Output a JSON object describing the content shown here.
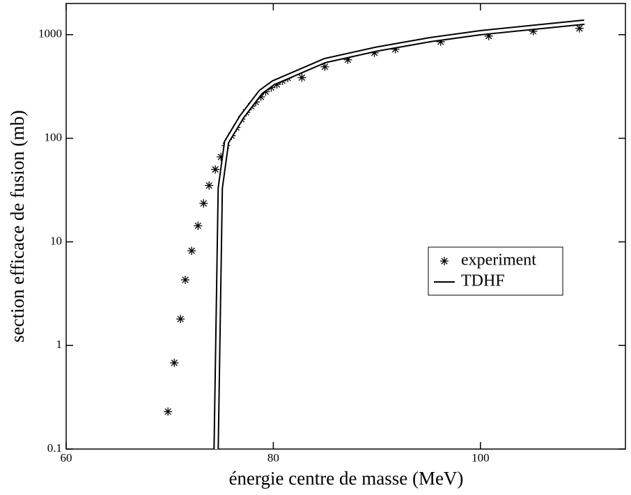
{
  "chart_data": {
    "type": "scatter",
    "xlabel": "énergie centre de masse (MeV)",
    "ylabel": "section efficace de fusion (mb)",
    "xlim": [
      60,
      114
    ],
    "xticks": [
      60,
      80,
      100
    ],
    "ylim": [
      0.1,
      2000
    ],
    "yticks": [
      0.1,
      1,
      10,
      100,
      1000
    ],
    "ylog": true,
    "legend": "right",
    "series": [
      {
        "name": "experiment",
        "style": "markers",
        "color": "#000000",
        "x": [
          69.83,
          70.44,
          71.04,
          71.5,
          72.12,
          72.73,
          73.27,
          73.8,
          74.4,
          74.95,
          75.42,
          75.96,
          76.43,
          76.9,
          77.37,
          77.85,
          78.3,
          78.8,
          79.26,
          79.8,
          80.34,
          80.88,
          81.4,
          82.76,
          84.98,
          87.2,
          89.76,
          91.78,
          96.16,
          100.8,
          105.1,
          109.56
        ],
        "values": [
          0.23,
          0.68,
          1.8,
          4.3,
          8.2,
          14.3,
          23.5,
          35,
          50,
          66,
          85,
          106,
          127,
          153,
          178,
          204,
          224,
          251,
          282,
          309,
          331,
          359,
          382,
          385,
          490,
          573,
          668,
          724,
          855,
          970,
          1080,
          1150
        ]
      },
      {
        "name": "TDHF",
        "style": "line",
        "color": "#000000",
        "x": [
          74.48,
          74.88,
          75.49,
          76.97,
          78.79,
          80,
          84.98,
          89.97,
          95.2,
          100.07,
          110.03
        ],
        "values": [
          0.1,
          33,
          92,
          162,
          280,
          343,
          562,
          725,
          897,
          1047,
          1320
        ]
      }
    ]
  }
}
